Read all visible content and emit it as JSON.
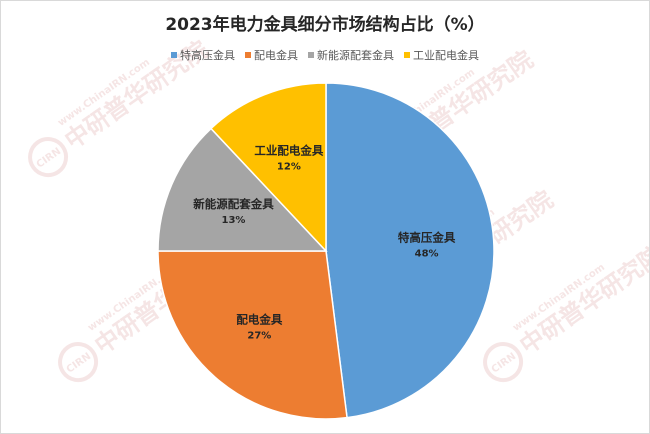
{
  "chart_data": {
    "type": "pie",
    "title": "2023年电力金具细分市场结构占比（%）",
    "legend_position": "top",
    "categories": [
      "特高压金具",
      "配电金具",
      "新能源配套金具",
      "工业配电金具"
    ],
    "values": [
      48,
      27,
      13,
      12
    ],
    "value_labels": [
      "48%",
      "27%",
      "13%",
      "12%"
    ],
    "colors": [
      "#5b9bd5",
      "#ed7d31",
      "#a5a5a5",
      "#ffc000"
    ]
  },
  "watermark": {
    "brand": "中研普华研究院",
    "url": "www.ChinaIRN.com",
    "logo": "CIRN"
  }
}
